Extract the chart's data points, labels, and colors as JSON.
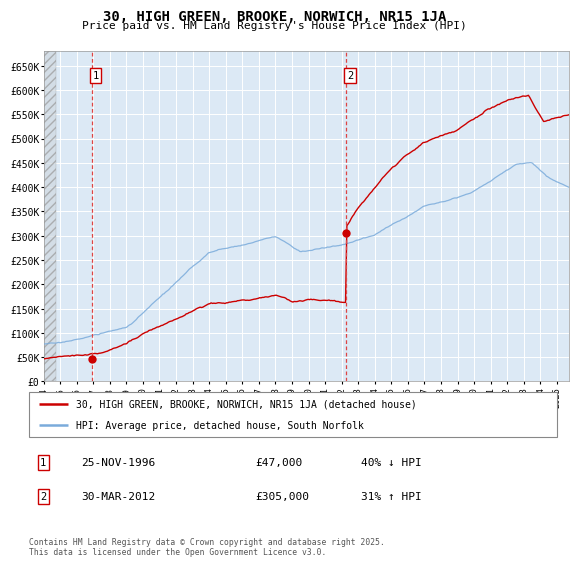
{
  "title": "30, HIGH GREEN, BROOKE, NORWICH, NR15 1JA",
  "subtitle": "Price paid vs. HM Land Registry's House Price Index (HPI)",
  "background_color": "#dce9f5",
  "grid_color": "#ffffff",
  "y_ticks": [
    0,
    50000,
    100000,
    150000,
    200000,
    250000,
    300000,
    350000,
    400000,
    450000,
    500000,
    550000,
    600000,
    650000
  ],
  "y_tick_labels": [
    "£0",
    "£50K",
    "£100K",
    "£150K",
    "£200K",
    "£250K",
    "£300K",
    "£350K",
    "£400K",
    "£450K",
    "£500K",
    "£550K",
    "£600K",
    "£650K"
  ],
  "ylim": [
    0,
    680000
  ],
  "xlim_start": 1994.0,
  "xlim_end": 2025.7,
  "sale1_date": 1996.9,
  "sale1_price": 47000,
  "sale1_label": "1",
  "sale2_date": 2012.25,
  "sale2_price": 305000,
  "sale2_label": "2",
  "legend_line1": "30, HIGH GREEN, BROOKE, NORWICH, NR15 1JA (detached house)",
  "legend_line2": "HPI: Average price, detached house, South Norfolk",
  "note1_label": "1",
  "note1_date": "25-NOV-1996",
  "note1_price": "£47,000",
  "note1_hpi": "40% ↓ HPI",
  "note2_label": "2",
  "note2_date": "30-MAR-2012",
  "note2_price": "£305,000",
  "note2_hpi": "31% ↑ HPI",
  "footer": "Contains HM Land Registry data © Crown copyright and database right 2025.\nThis data is licensed under the Open Government Licence v3.0.",
  "red_line_color": "#cc0000",
  "blue_line_color": "#7aabdb",
  "marker_color": "#cc0000"
}
